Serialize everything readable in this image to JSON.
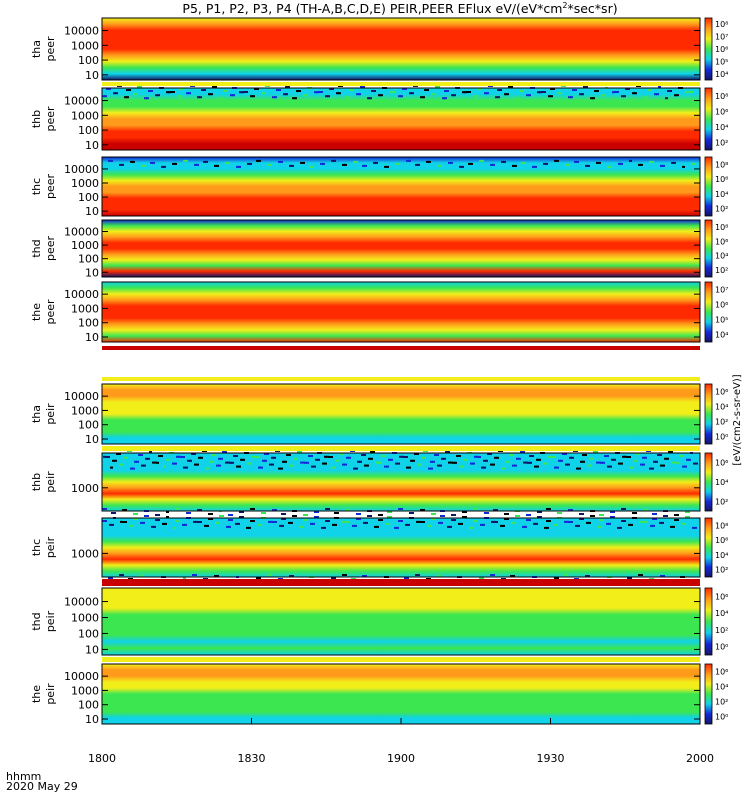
{
  "title": {
    "text": "P5, P1, P2, P3, P4 (TH-A,B,C,D,E) PEIR,PEER EFlux eV/(eV*cm",
    "sup": "2",
    "text_end": "*sec*sr)"
  },
  "footer": {
    "time_label": "hhmm",
    "date_label": "2020 May 29"
  },
  "colorbar_unit_label": "[eV/(cm2-s-sr-eV)]",
  "colors": {
    "deep_red": "#c80000",
    "red": "#ff2a00",
    "orange": "#ff9a1a",
    "yellow": "#f2ee1a",
    "green": "#3ce650",
    "cyan": "#10d2e8",
    "blue": "#1428d8",
    "dark_blue": "#141466",
    "black": "#000000"
  },
  "chart_data": {
    "type": "heatmap",
    "description_of_axes": "shared time x-axis, log-energy y-axis per panel",
    "x_axis": {
      "label": "hhmm",
      "tick_labels": [
        "1800",
        "1830",
        "1900",
        "1930",
        "2000"
      ],
      "range": [
        "18:00",
        "20:00"
      ],
      "date": "2020 May 29"
    },
    "panels": [
      {
        "probe": "tha",
        "species": "peer",
        "label_line1": "tha",
        "label_line2": "peer",
        "yscale": "log",
        "yticks": [
          "10",
          "100",
          "1000",
          "10000"
        ],
        "colorbar_ticks": [
          "10⁴",
          "10⁵",
          "10⁶",
          "10⁷",
          "10⁸"
        ],
        "profile": [
          "yellow",
          "orange",
          "red",
          "red",
          "red",
          "red",
          "orange",
          "yellow",
          "green",
          "cyan",
          "dark_blue"
        ]
      },
      {
        "probe": "thb",
        "species": "peer",
        "label_line1": "thb",
        "label_line2": "peer",
        "yscale": "log",
        "yticks": [
          "10",
          "100",
          "1000",
          "10000"
        ],
        "colorbar_ticks": [
          "10²",
          "10⁴",
          "10⁶",
          "10⁸"
        ],
        "profile": [
          "noise",
          "noise",
          "green",
          "green",
          "yellow",
          "orange",
          "orange",
          "red",
          "red",
          "deep_red",
          "deep_red"
        ]
      },
      {
        "probe": "thc",
        "species": "peer",
        "label_line1": "thc",
        "label_line2": "peer",
        "yscale": "log",
        "yticks": [
          "10",
          "100",
          "1000",
          "10000"
        ],
        "colorbar_ticks": [
          "10²",
          "10⁴",
          "10⁶",
          "10⁸"
        ],
        "profile": [
          "blue",
          "noise",
          "cyan",
          "green",
          "yellow",
          "orange",
          "orange",
          "red",
          "red",
          "red",
          "deep_red"
        ]
      },
      {
        "probe": "thd",
        "species": "peer",
        "label_line1": "thd",
        "label_line2": "peer",
        "yscale": "log",
        "yticks": [
          "10",
          "100",
          "1000",
          "10000"
        ],
        "colorbar_ticks": [
          "10²",
          "10⁴",
          "10⁶",
          "10⁸"
        ],
        "profile": [
          "blue",
          "green",
          "yellow",
          "orange",
          "red",
          "red",
          "orange",
          "yellow",
          "green",
          "red",
          "dark_blue"
        ]
      },
      {
        "probe": "the",
        "species": "peer",
        "label_line1": "the",
        "label_line2": "peer",
        "yscale": "log",
        "yticks": [
          "10",
          "100",
          "1000",
          "10000"
        ],
        "colorbar_ticks": [
          "10⁴",
          "10⁵",
          "10⁶",
          "10⁷"
        ],
        "profile": [
          "cyan",
          "green",
          "yellow",
          "orange",
          "red",
          "red",
          "red",
          "orange",
          "yellow",
          "green",
          "red"
        ]
      },
      {
        "probe": "tha",
        "species": "peir",
        "label_line1": "tha",
        "label_line2": "peir",
        "yscale": "log",
        "yticks": [
          "10",
          "100",
          "1000",
          "10000"
        ],
        "colorbar_ticks": [
          "10⁰",
          "10²",
          "10⁴",
          "10⁶"
        ],
        "profile": [
          "yellow",
          "orange",
          "orange",
          "yellow",
          "yellow",
          "yellow",
          "green",
          "green",
          "green",
          "cyan",
          "cyan"
        ]
      },
      {
        "probe": "thb",
        "species": "peir",
        "label_line1": "thb",
        "label_line2": "peir",
        "yscale": "log",
        "yticks": [
          "1000"
        ],
        "colorbar_ticks": [
          "10²",
          "10⁴",
          "10⁶"
        ],
        "profile": [
          "noise",
          "noise",
          "noise",
          "cyan",
          "green",
          "yellow",
          "orange",
          "red",
          "yellow",
          "green",
          "noise"
        ]
      },
      {
        "probe": "thc",
        "species": "peir",
        "label_line1": "thc",
        "label_line2": "peir",
        "yscale": "log",
        "yticks": [
          "1000"
        ],
        "colorbar_ticks": [
          "10²",
          "10⁴",
          "10⁶",
          "10⁸"
        ],
        "profile": [
          "noise",
          "noise",
          "cyan",
          "cyan",
          "green",
          "yellow",
          "orange",
          "red",
          "yellow",
          "green",
          "noise"
        ]
      },
      {
        "probe": "thd",
        "species": "peir",
        "label_line1": "thd",
        "label_line2": "peir",
        "yscale": "log",
        "yticks": [
          "10",
          "100",
          "1000",
          "10000"
        ],
        "colorbar_ticks": [
          "10⁰",
          "10²",
          "10⁴",
          "10⁶"
        ],
        "profile": [
          "yellow",
          "yellow",
          "yellow",
          "yellow",
          "green",
          "green",
          "green",
          "green",
          "cyan",
          "green",
          "cyan"
        ]
      },
      {
        "probe": "the",
        "species": "peir",
        "label_line1": "the",
        "label_line2": "peir",
        "yscale": "log",
        "yticks": [
          "10",
          "100",
          "1000",
          "10000"
        ],
        "colorbar_ticks": [
          "10⁰",
          "10²",
          "10⁴",
          "10⁶"
        ],
        "profile": [
          "yellow",
          "orange",
          "orange",
          "yellow",
          "yellow",
          "green",
          "green",
          "green",
          "green",
          "cyan",
          "cyan"
        ]
      }
    ]
  }
}
